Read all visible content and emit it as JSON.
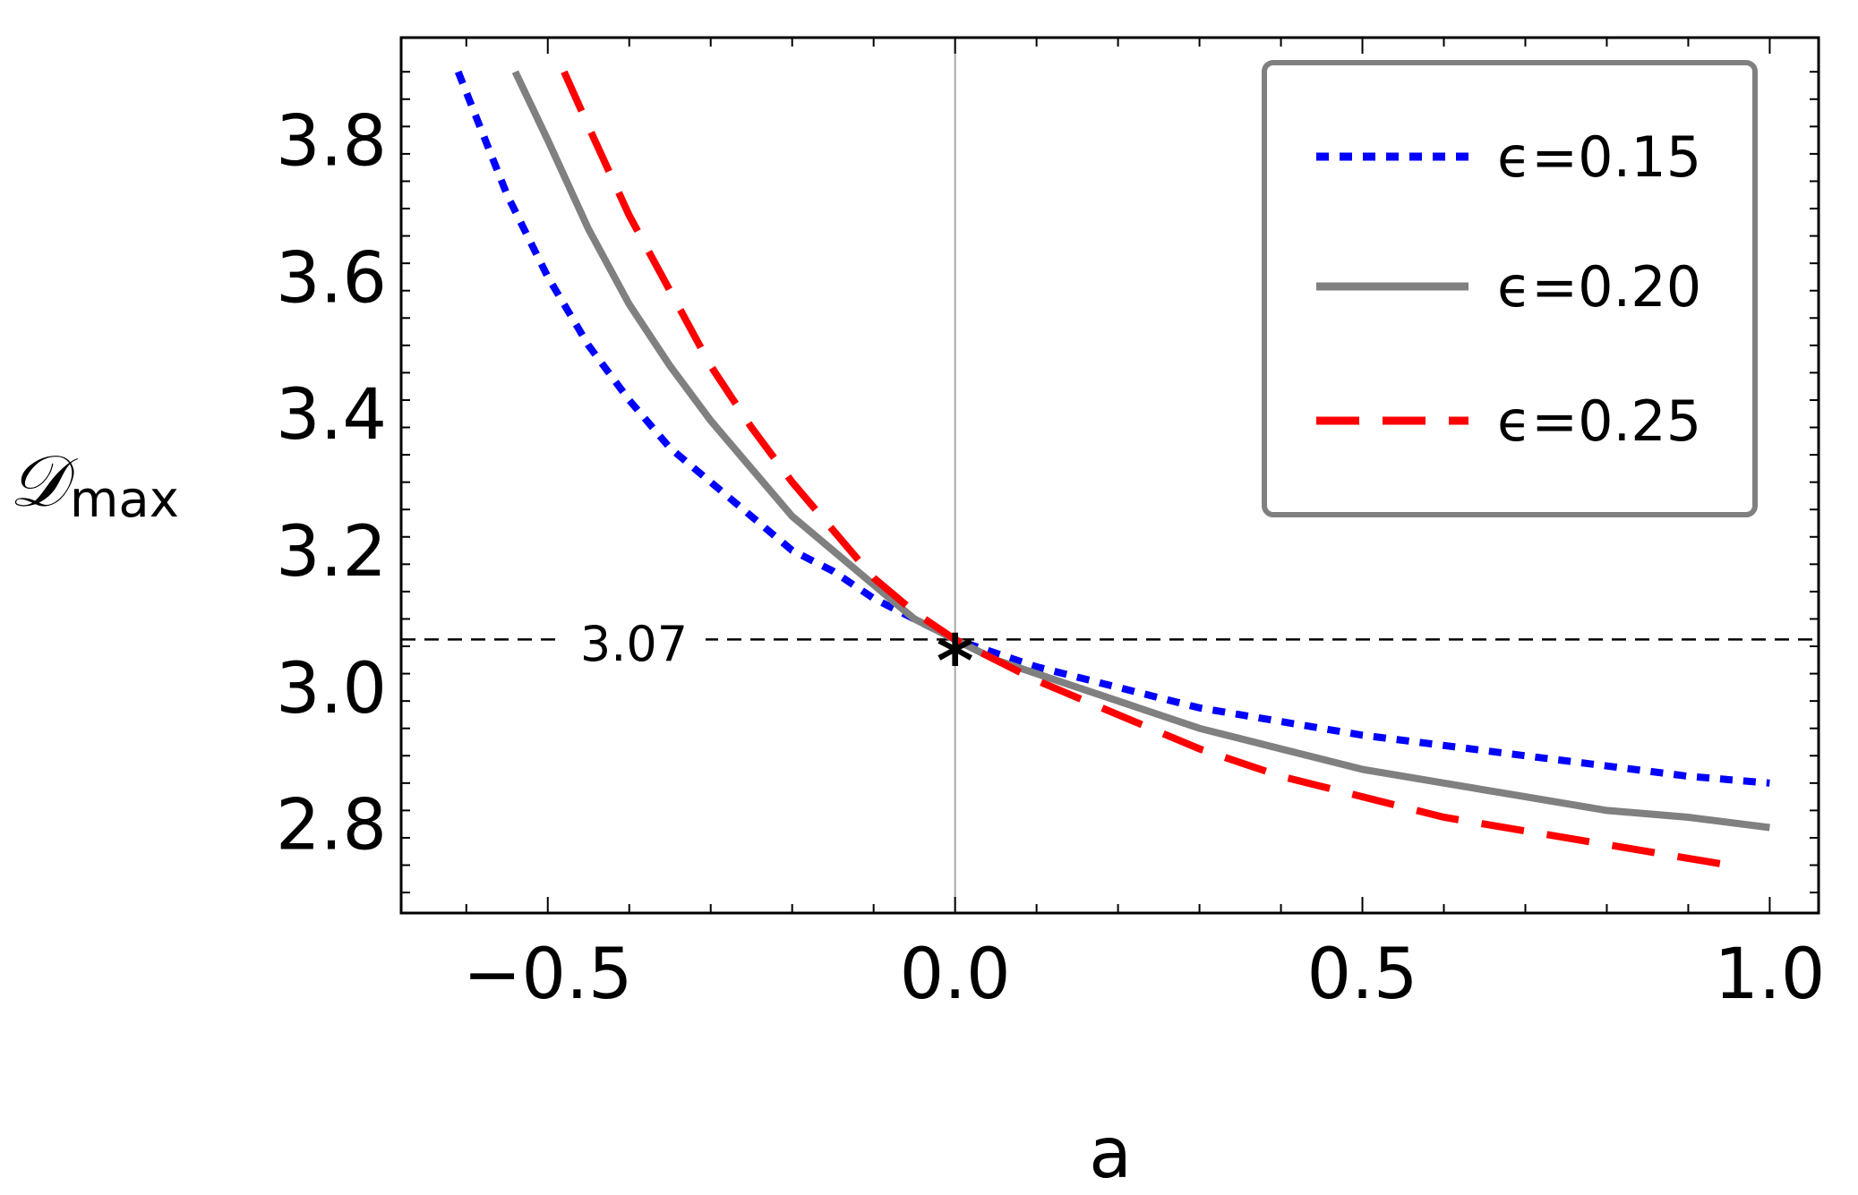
{
  "chart_data": {
    "type": "line",
    "xlabel": "a",
    "ylabel_main": "𝒟",
    "ylabel_sub": "max",
    "xlim": [
      -0.68,
      1.06
    ],
    "ylim": [
      2.67,
      3.95
    ],
    "x_ticks": [
      -0.5,
      0.0,
      0.5,
      1.0
    ],
    "x_tick_labels": [
      "−0.5",
      "0.0",
      "0.5",
      "1.0"
    ],
    "y_ticks": [
      2.8,
      3.0,
      3.2,
      3.4,
      3.6,
      3.8
    ],
    "y_tick_labels": [
      "2.8",
      "3.0",
      "3.2",
      "3.4",
      "3.6",
      "3.8"
    ],
    "grid": false,
    "legend_position": "top-right",
    "reference_lines": {
      "horizontal": 3.07,
      "vertical": 0.0
    },
    "annotation": {
      "text": "3.07",
      "marker": "*",
      "x": 0.0,
      "y": 3.07
    },
    "series": [
      {
        "name": "ϵ=0.15",
        "color": "#0000ff",
        "style": "dotted",
        "x": [
          -0.61,
          -0.55,
          -0.5,
          -0.45,
          -0.4,
          -0.35,
          -0.3,
          -0.25,
          -0.2,
          -0.15,
          -0.1,
          -0.05,
          0.0,
          0.05,
          0.1,
          0.2,
          0.3,
          0.4,
          0.5,
          0.6,
          0.7,
          0.8,
          0.9,
          1.0
        ],
        "y": [
          3.9,
          3.72,
          3.6,
          3.5,
          3.42,
          3.35,
          3.3,
          3.25,
          3.2,
          3.17,
          3.13,
          3.1,
          3.07,
          3.05,
          3.03,
          3.0,
          2.97,
          2.95,
          2.93,
          2.915,
          2.9,
          2.885,
          2.87,
          2.86
        ]
      },
      {
        "name": "ϵ=0.20",
        "color": "#808080",
        "style": "solid",
        "x": [
          -0.54,
          -0.5,
          -0.45,
          -0.4,
          -0.35,
          -0.3,
          -0.25,
          -0.2,
          -0.15,
          -0.1,
          -0.05,
          0.0,
          0.05,
          0.1,
          0.2,
          0.3,
          0.4,
          0.5,
          0.6,
          0.7,
          0.8,
          0.9,
          1.0
        ],
        "y": [
          3.9,
          3.8,
          3.67,
          3.56,
          3.47,
          3.39,
          3.32,
          3.25,
          3.2,
          3.15,
          3.1,
          3.07,
          3.04,
          3.02,
          2.98,
          2.94,
          2.91,
          2.88,
          2.86,
          2.84,
          2.82,
          2.81,
          2.795
        ]
      },
      {
        "name": "ϵ=0.25",
        "color": "#ff0000",
        "style": "dashed",
        "x": [
          -0.48,
          -0.45,
          -0.4,
          -0.35,
          -0.3,
          -0.25,
          -0.2,
          -0.15,
          -0.1,
          -0.05,
          0.0,
          0.05,
          0.1,
          0.2,
          0.3,
          0.4,
          0.5,
          0.6,
          0.7,
          0.8,
          0.9,
          0.95
        ],
        "y": [
          3.9,
          3.82,
          3.69,
          3.58,
          3.47,
          3.38,
          3.3,
          3.23,
          3.16,
          3.11,
          3.07,
          3.04,
          3.01,
          2.96,
          2.91,
          2.87,
          2.84,
          2.81,
          2.79,
          2.77,
          2.75,
          2.74
        ]
      }
    ]
  }
}
